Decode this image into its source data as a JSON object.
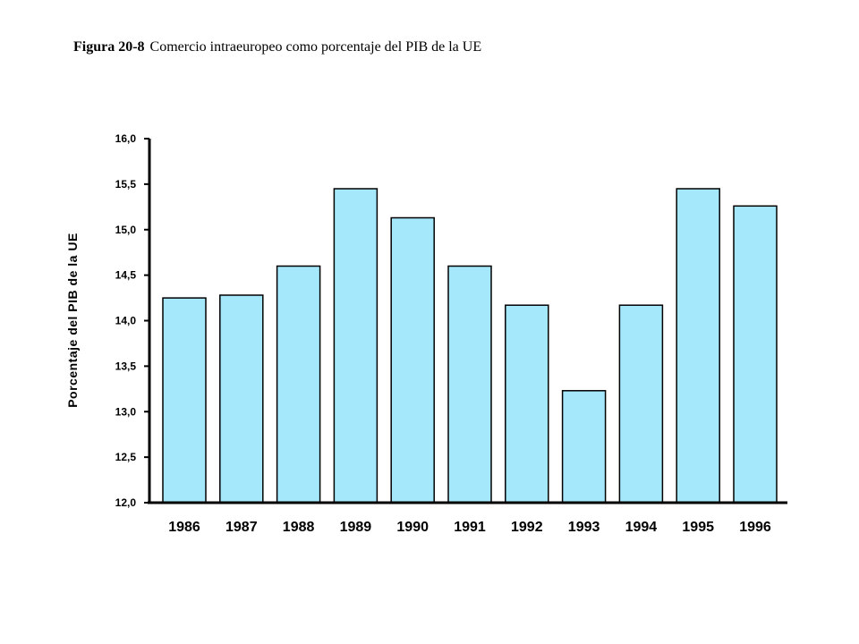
{
  "figure": {
    "number": "Figura 20-8",
    "caption": "Comercio intraeuropeo como porcentaje del PIB de la UE"
  },
  "chart_data": {
    "type": "bar",
    "title": "Figura 20-8 Comercio intraeuropeo como porcentaje del PIB de la UE",
    "xlabel": "",
    "ylabel": "Porcentaje  del  PIB de la UE",
    "categories": [
      "1986",
      "1987",
      "1988",
      "1989",
      "1990",
      "1991",
      "1992",
      "1993",
      "1994",
      "1995",
      "1996"
    ],
    "values": [
      14.25,
      14.28,
      14.6,
      15.45,
      15.13,
      14.6,
      14.17,
      13.23,
      14.17,
      15.45,
      15.26
    ],
    "ylim": [
      12.0,
      16.0
    ],
    "yticks": [
      12.0,
      12.5,
      13.0,
      13.5,
      14.0,
      14.5,
      15.0,
      15.5,
      16.0
    ],
    "ytick_labels": [
      "12,0",
      "12,5",
      "13,0",
      "13,5",
      "14,0",
      "14,5",
      "15,0",
      "15,5",
      "16,0"
    ],
    "grid": false,
    "legend": "none",
    "bar_color": "#a6e8fb",
    "bar_edge_color": "#000000"
  }
}
